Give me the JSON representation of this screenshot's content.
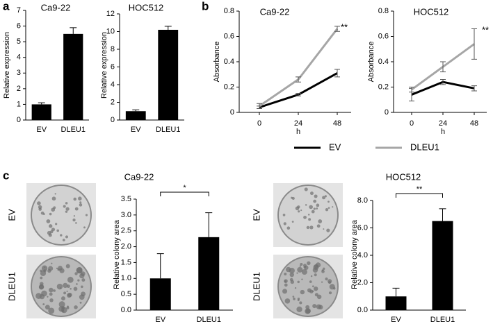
{
  "labels": [
    "a",
    "b",
    "c"
  ],
  "chart_data": [
    {
      "type": "bar",
      "title": "Ca9-22",
      "y_label": "Relative expression",
      "categories": [
        "EV",
        "DLEU1"
      ],
      "values": [
        1.0,
        5.5
      ],
      "errors": [
        0.1,
        0.4
      ],
      "color": "#000000",
      "ylim": [
        0,
        7
      ],
      "yticks": [
        0,
        1,
        2,
        3,
        4,
        5,
        6,
        7
      ]
    },
    {
      "type": "bar",
      "title": "HOC512",
      "y_label": "Relative expression",
      "categories": [
        "EV",
        "DLEU1"
      ],
      "values": [
        1.0,
        10.2
      ],
      "errors": [
        0.15,
        0.4
      ],
      "color": "#000000",
      "ylim": [
        0,
        12
      ],
      "yticks": [
        0,
        2,
        4,
        6,
        8,
        10,
        12
      ]
    },
    {
      "type": "line",
      "title": "Ca9-22",
      "x_label": "h",
      "y_label": "Absorbance",
      "x": [
        0,
        24,
        48
      ],
      "xlim": [
        0,
        48
      ],
      "xticks": [
        0,
        24,
        48
      ],
      "series": [
        {
          "name": "EV",
          "color": "#000000",
          "values": [
            0.04,
            0.14,
            0.31
          ],
          "errors": [
            0.01,
            0.01,
            0.03
          ]
        },
        {
          "name": "DLEU1",
          "color": "#a6a6a6",
          "values": [
            0.05,
            0.26,
            0.66
          ],
          "errors": [
            0.02,
            0.02,
            0.02
          ]
        }
      ],
      "ylim": [
        0,
        0.8
      ],
      "yticks": [
        0,
        0.2,
        0.4,
        0.6,
        0.8
      ],
      "annotation": "**"
    },
    {
      "type": "line",
      "title": "HOC512",
      "x_label": "h",
      "y_label": "Absorbance",
      "x": [
        0,
        24,
        48
      ],
      "xlim": [
        0,
        48
      ],
      "xticks": [
        0,
        24,
        48
      ],
      "series": [
        {
          "color": "#000000",
          "values": [
            0.14,
            0.24,
            0.19
          ],
          "errors": [
            0.05,
            0.02,
            0.02
          ]
        },
        {
          "color": "#a6a6a6",
          "values": [
            0.18,
            0.36,
            0.54
          ],
          "errors": [
            0.02,
            0.04,
            0.12
          ]
        }
      ],
      "ylim": [
        0,
        0.8
      ],
      "yticks": [
        0,
        0.2,
        0.4,
        0.6,
        0.8
      ],
      "annotation": "**"
    },
    {
      "type": "bar",
      "title": "Ca9-22",
      "image_labels": [
        "EV",
        "DLEU1"
      ],
      "y_label": "Relative colony area",
      "categories": [
        "EV",
        "DLEU1"
      ],
      "values": [
        1.0,
        2.3
      ],
      "errors": [
        0.78,
        0.77
      ],
      "color": "#000000",
      "ylim": [
        0,
        3.5
      ],
      "yticks": [
        {
          "value": 0,
          "label": "0.0"
        },
        {
          "value": 0.5,
          "label": "0.5"
        },
        {
          "value": 1,
          "label": "1.0"
        },
        {
          "value": 1.5,
          "label": "1.5"
        },
        {
          "value": 2,
          "label": "2.0"
        },
        {
          "value": 2.5,
          "label": "2.5"
        },
        {
          "value": 3,
          "label": "3.0"
        },
        {
          "value": 3.5,
          "label": "3.5"
        }
      ],
      "annotation": "*"
    },
    {
      "type": "bar",
      "title": "HOC512",
      "image_labels": [
        "EV",
        "DLEU1"
      ],
      "y_label": "Relative colony area",
      "categories": [
        "EV",
        "DLEU1"
      ],
      "values": [
        1.0,
        6.5
      ],
      "errors": [
        0.6,
        0.9
      ],
      "color": "#000000",
      "ylim": [
        0,
        8
      ],
      "yticks": [
        {
          "value": 0,
          "label": "0.0"
        },
        {
          "value": 2,
          "label": "2.0"
        },
        {
          "value": 4,
          "label": "4.0"
        },
        {
          "value": 6,
          "label": "6.0"
        },
        {
          "value": 8,
          "label": "8.0"
        }
      ],
      "annotation": "**"
    }
  ]
}
